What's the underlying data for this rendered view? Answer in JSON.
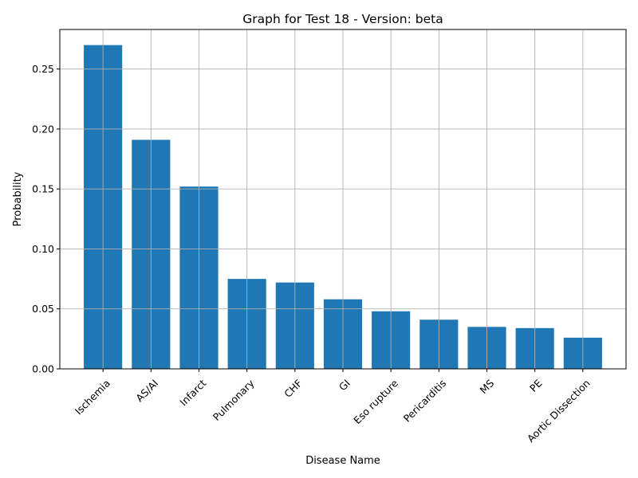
{
  "chart_data": {
    "type": "bar",
    "title": "Graph for Test 18 - Version: beta",
    "xlabel": "Disease Name",
    "ylabel": "Probability",
    "categories": [
      "Ischemia",
      "AS/AI",
      "Infarct",
      "Pulmonary",
      "CHF",
      "GI",
      "Eso rupture",
      "Pericarditis",
      "MS",
      "PE",
      "Aortic Dissection"
    ],
    "values": [
      0.27,
      0.191,
      0.152,
      0.075,
      0.072,
      0.058,
      0.048,
      0.041,
      0.035,
      0.034,
      0.026
    ],
    "ylim": [
      0,
      0.283
    ],
    "yticks": [
      "0.00",
      "0.05",
      "0.10",
      "0.15",
      "0.20",
      "0.25"
    ],
    "ytick_values": [
      0,
      0.05,
      0.1,
      0.15,
      0.2,
      0.25
    ],
    "grid": true,
    "bar_color": "#1f77b4",
    "grid_color": "#b0b0b0",
    "x_tick_rotation_deg": 45
  }
}
